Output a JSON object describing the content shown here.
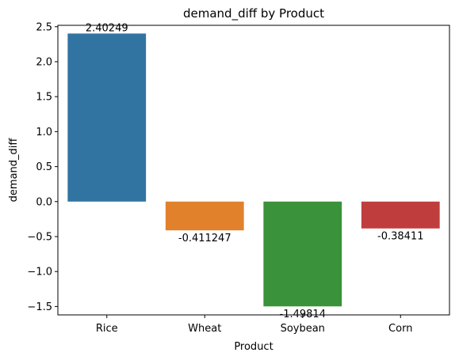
{
  "chart_data": {
    "type": "bar",
    "title": "demand_diff by Product",
    "xlabel": "Product",
    "ylabel": "demand_diff",
    "categories": [
      "Rice",
      "Wheat",
      "Soybean",
      "Corn"
    ],
    "values": [
      2.40249,
      -0.411247,
      -1.49814,
      -0.38411
    ],
    "data_labels": [
      "2.40249",
      "-0.411247",
      "-1.49814",
      "-0.38411"
    ],
    "colors": [
      "#3274a1",
      "#e1812c",
      "#3a923a",
      "#c03d3e"
    ],
    "ylim": [
      -1.62,
      2.52
    ],
    "yticks": [
      -1.5,
      -1.0,
      -0.5,
      0.0,
      0.5,
      1.0,
      1.5,
      2.0,
      2.5
    ],
    "ytick_labels": [
      "−1.5",
      "−1.0",
      "−0.5",
      "0.0",
      "0.5",
      "1.0",
      "1.5",
      "2.0",
      "2.5"
    ],
    "grid": false,
    "legend": "none"
  }
}
